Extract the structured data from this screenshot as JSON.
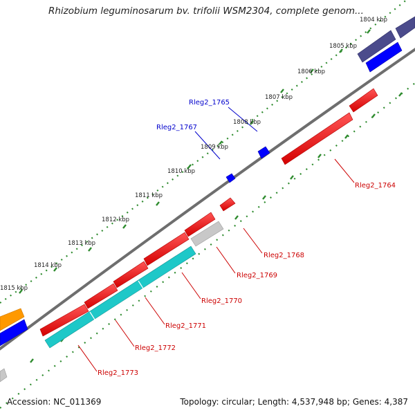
{
  "title": "Rhizobium leguminosarum bv. trifolii WSM2304, complete genom...",
  "footer": {
    "accession": "Accession: NC_011369",
    "summary": "Topology: circular; Length: 4,537,948 bp; Genes: 4,387"
  },
  "colors": {
    "forward_gene": "#ff0000",
    "reverse_gene": "#0000ff",
    "navy_gene": "#4b4b8c",
    "cyan_gene": "#1ec8c8",
    "gray_gene": "#c8c8c8",
    "orange_gene": "#ff9900",
    "backbone": "#7a7a7a",
    "tick": "#2e8b2e",
    "label_forward": "#cc0000",
    "label_reverse": "#0000cc"
  },
  "ticks": [
    {
      "label": "1804 kbp"
    },
    {
      "label": "1805 kbp"
    },
    {
      "label": "1806 kbp"
    },
    {
      "label": "1807 kbp"
    },
    {
      "label": "1808 kbp"
    },
    {
      "label": "1809 kbp"
    },
    {
      "label": "1810 kbp"
    },
    {
      "label": "1811 kbp"
    },
    {
      "label": "1812 kbp"
    },
    {
      "label": "1813 kbp"
    },
    {
      "label": "1814 kbp"
    },
    {
      "label": "1815 kbp"
    }
  ],
  "gene_labels": [
    {
      "id": "Rleg2_1765",
      "text": "Rleg2_1765",
      "strand": "reverse"
    },
    {
      "id": "Rleg2_1767",
      "text": "Rleg2_1767",
      "strand": "reverse"
    },
    {
      "id": "Rleg2_1764",
      "text": "Rleg2_1764",
      "strand": "forward"
    },
    {
      "id": "Rleg2_1768",
      "text": "Rleg2_1768",
      "strand": "forward"
    },
    {
      "id": "Rleg2_1769",
      "text": "Rleg2_1769",
      "strand": "forward"
    },
    {
      "id": "Rleg2_1770",
      "text": "Rleg2_1770",
      "strand": "forward"
    },
    {
      "id": "Rleg2_1771",
      "text": "Rleg2_1771",
      "strand": "forward"
    },
    {
      "id": "Rleg2_1772",
      "text": "Rleg2_1772",
      "strand": "forward"
    },
    {
      "id": "Rleg2_1773",
      "text": "Rleg2_1773",
      "strand": "forward"
    }
  ]
}
